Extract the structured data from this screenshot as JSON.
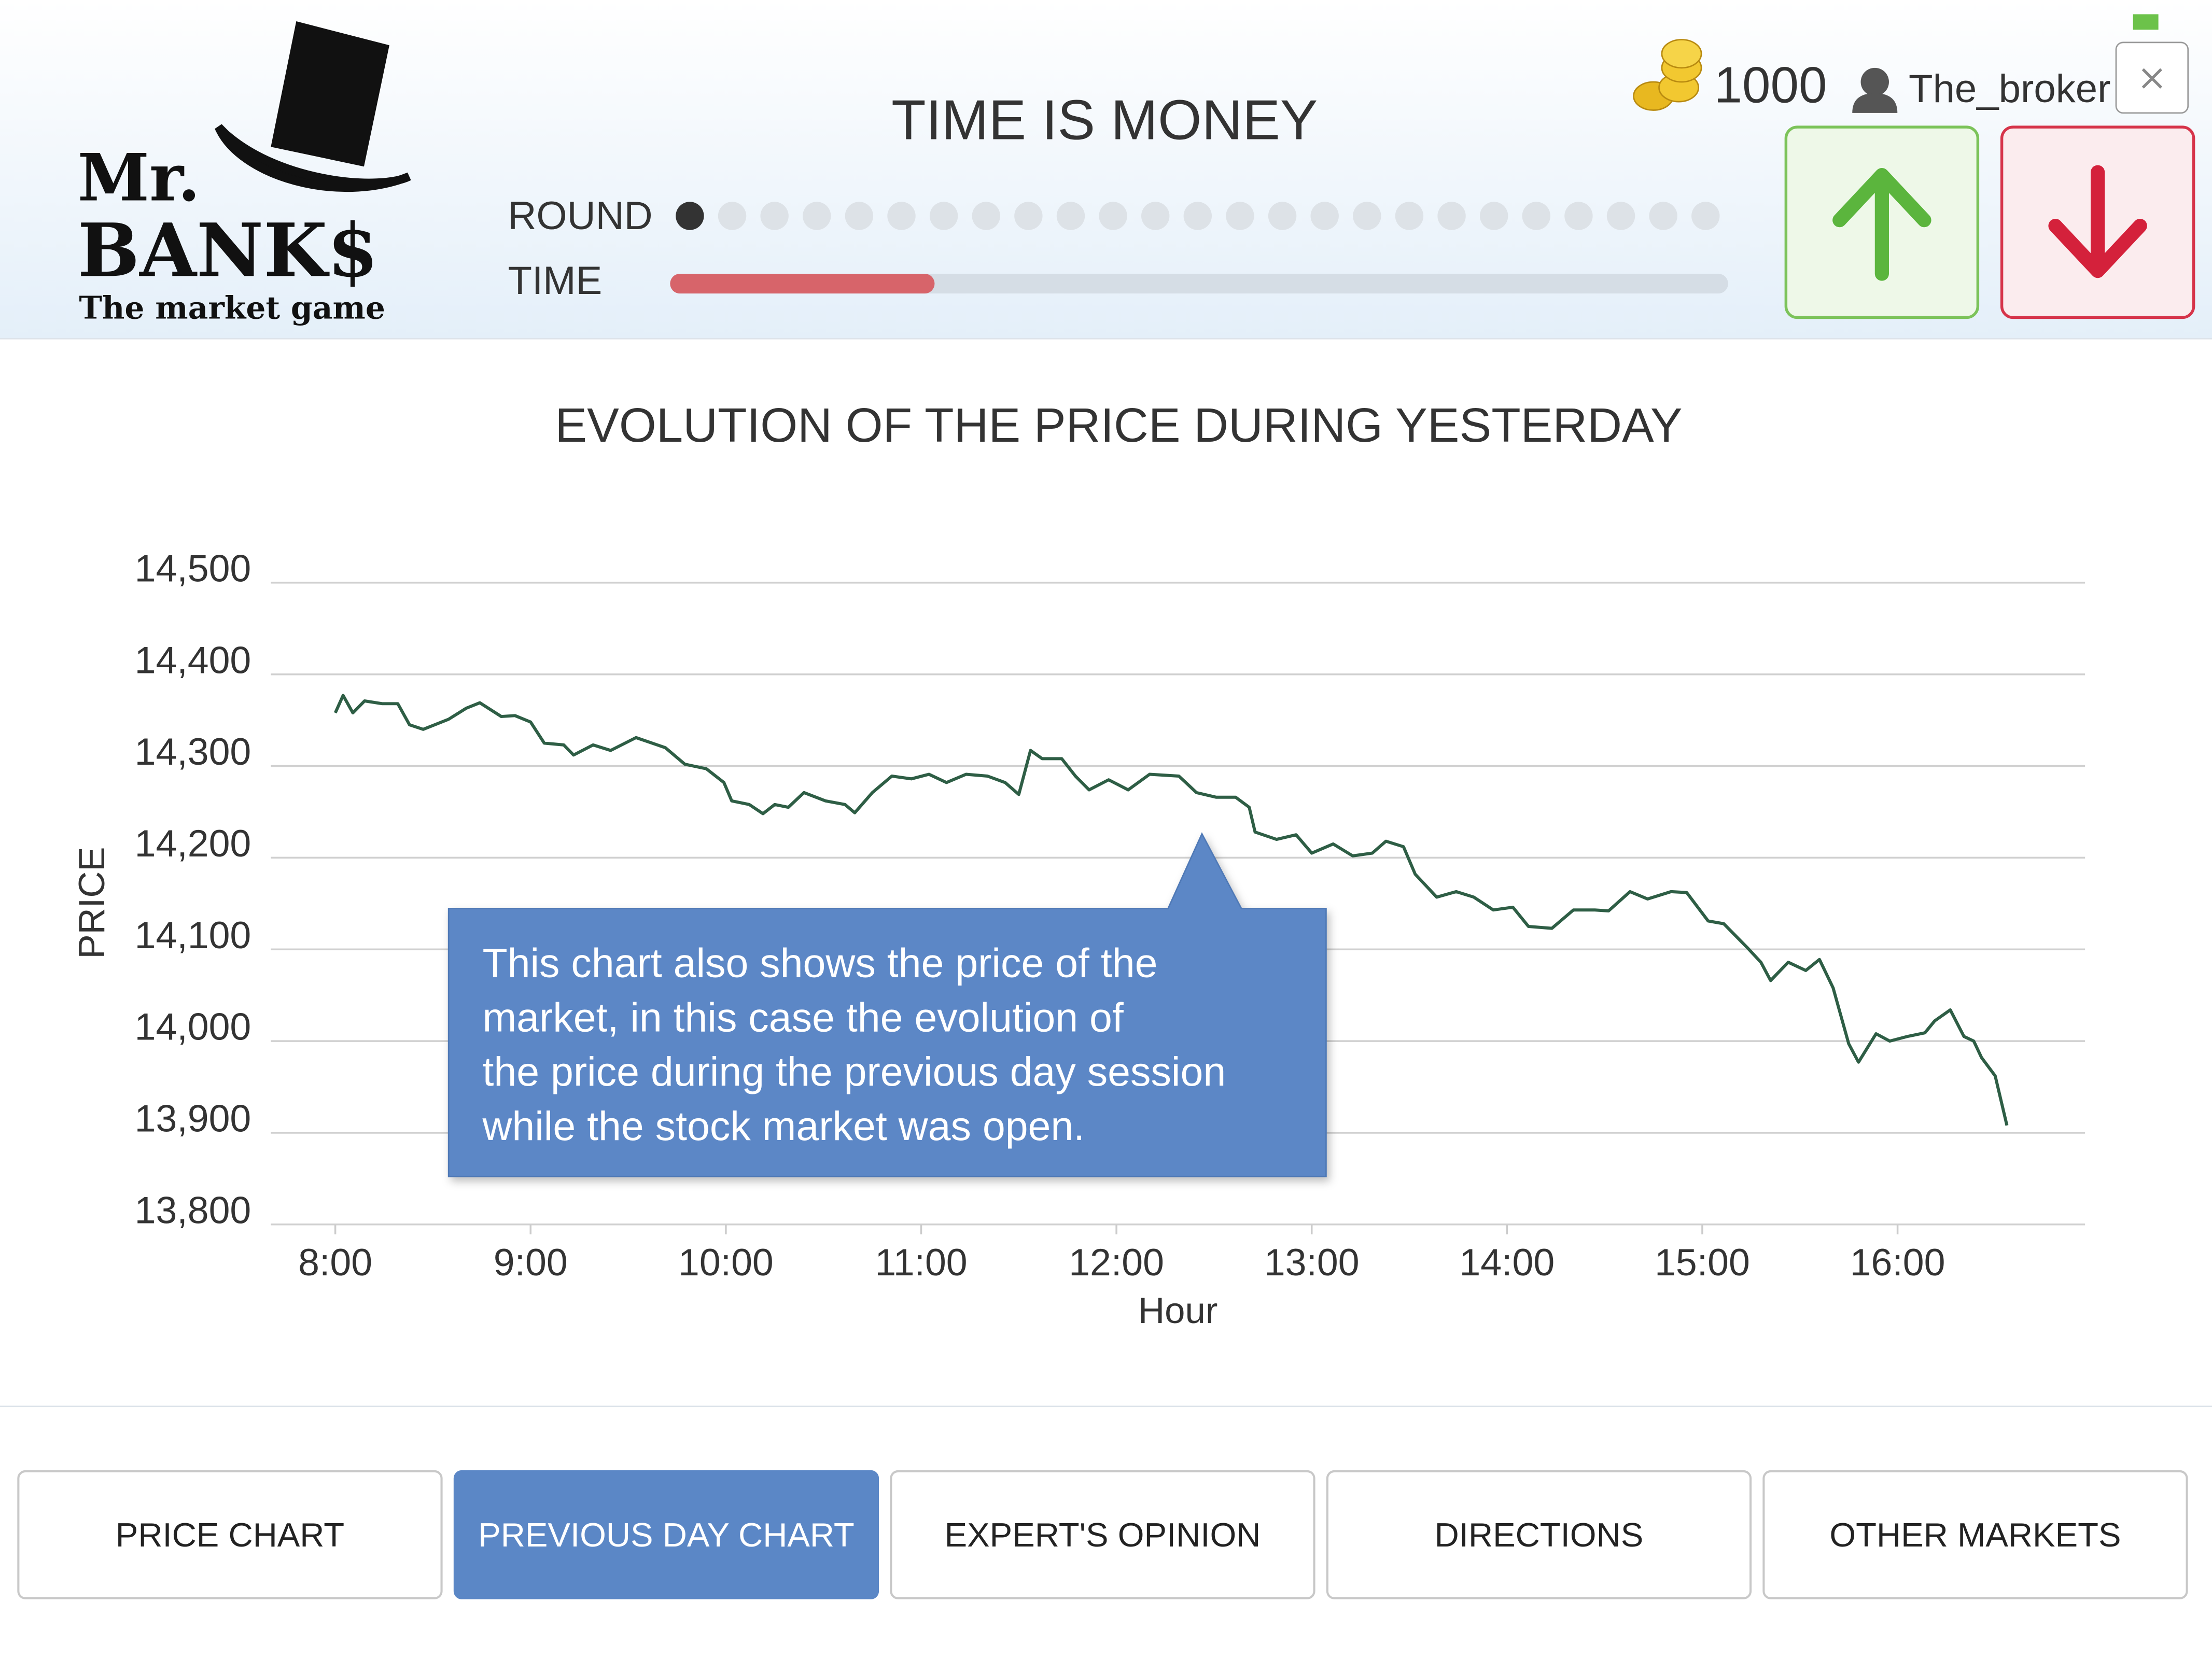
{
  "header": {
    "logo": {
      "line1": "Mr.",
      "line2": "BANK$",
      "tagline": "The market game"
    },
    "title": "TIME IS MONEY",
    "round_label": "ROUND",
    "time_label": "TIME",
    "round": {
      "current": 1,
      "total": 25
    },
    "time_elapsed_fraction": 0.25,
    "coins": "1000",
    "user": "The_broker"
  },
  "chart_data": {
    "type": "line",
    "title": "EVOLUTION OF THE PRICE DURING YESTERDAY",
    "x_label": "Hour",
    "y_label": "PRICE",
    "color": "#2e5e45",
    "grid": true,
    "xlim": [
      7.67,
      16.96
    ],
    "xticks": [
      {
        "value": 8,
        "label": "8:00"
      },
      {
        "value": 9,
        "label": "9:00"
      },
      {
        "value": 10,
        "label": "10:00"
      },
      {
        "value": 11,
        "label": "11:00"
      },
      {
        "value": 12,
        "label": "12:00"
      },
      {
        "value": 13,
        "label": "13:00"
      },
      {
        "value": 14,
        "label": "14:00"
      },
      {
        "value": 15,
        "label": "15:00"
      },
      {
        "value": 16,
        "label": "16:00"
      }
    ],
    "ylim": [
      13800,
      14500
    ],
    "yticks": [
      {
        "value": 13800,
        "label": "13,800"
      },
      {
        "value": 13900,
        "label": "13,900"
      },
      {
        "value": 14000,
        "label": "14,000"
      },
      {
        "value": 14100,
        "label": "14,100"
      },
      {
        "value": 14200,
        "label": "14,200"
      },
      {
        "value": 14300,
        "label": "14,300"
      },
      {
        "value": 14400,
        "label": "14,400"
      },
      {
        "value": 14500,
        "label": "14,500"
      }
    ],
    "x": [
      8.0,
      8.04,
      8.09,
      8.15,
      8.24,
      8.32,
      8.38,
      8.45,
      8.58,
      8.67,
      8.74,
      8.85,
      8.92,
      9.0,
      9.07,
      9.17,
      9.22,
      9.32,
      9.41,
      9.54,
      9.69,
      9.79,
      9.9,
      9.99,
      10.03,
      10.12,
      10.19,
      10.25,
      10.32,
      10.4,
      10.51,
      10.61,
      10.66,
      10.75,
      10.85,
      10.95,
      11.04,
      11.13,
      11.23,
      11.34,
      11.43,
      11.5,
      11.56,
      11.62,
      11.72,
      11.79,
      11.86,
      11.96,
      12.06,
      12.17,
      12.32,
      12.41,
      12.51,
      12.61,
      12.68,
      12.71,
      12.82,
      12.92,
      13.0,
      13.11,
      13.21,
      13.31,
      13.38,
      13.47,
      13.53,
      13.64,
      13.74,
      13.83,
      13.93,
      14.03,
      14.11,
      14.23,
      14.34,
      14.45,
      14.52,
      14.63,
      14.72,
      14.84,
      14.92,
      15.03,
      15.11,
      15.23,
      15.3,
      15.35,
      15.44,
      15.53,
      15.6,
      15.67,
      15.75,
      15.8,
      15.89,
      15.96,
      16.05,
      16.14,
      16.19,
      16.27,
      16.34,
      16.39,
      16.43,
      16.5,
      16.56
    ],
    "values": [
      14358,
      14377,
      14358,
      14371,
      14368,
      14368,
      14345,
      14340,
      14351,
      14363,
      14369,
      14354,
      14355,
      14348,
      14325,
      14323,
      14312,
      14323,
      14317,
      14331,
      14320,
      14302,
      14297,
      14282,
      14262,
      14258,
      14248,
      14258,
      14255,
      14271,
      14262,
      14258,
      14249,
      14271,
      14289,
      14286,
      14291,
      14282,
      14291,
      14289,
      14282,
      14269,
      14317,
      14308,
      14308,
      14289,
      14274,
      14285,
      14274,
      14291,
      14289,
      14271,
      14266,
      14266,
      14255,
      14228,
      14220,
      14225,
      14205,
      14215,
      14202,
      14205,
      14218,
      14212,
      14182,
      14157,
      14163,
      14157,
      14143,
      14146,
      14125,
      14123,
      14143,
      14143,
      14142,
      14163,
      14155,
      14163,
      14162,
      14131,
      14128,
      14102,
      14086,
      14066,
      14086,
      14077,
      14089,
      14058,
      13997,
      13977,
      14008,
      14000,
      14005,
      14009,
      14022,
      14034,
      14005,
      14000,
      13982,
      13962,
      13908
    ]
  },
  "callout": {
    "lines": [
      "This chart also shows the price of the",
      "market, in this case the evolution of",
      "the price during the previous day session",
      "while the stock market was open."
    ]
  },
  "tabs": {
    "items": [
      "PRICE CHART",
      "PREVIOUS DAY CHART",
      "EXPERT'S OPINION",
      "DIRECTIONS",
      "OTHER MARKETS"
    ],
    "active": 1
  }
}
